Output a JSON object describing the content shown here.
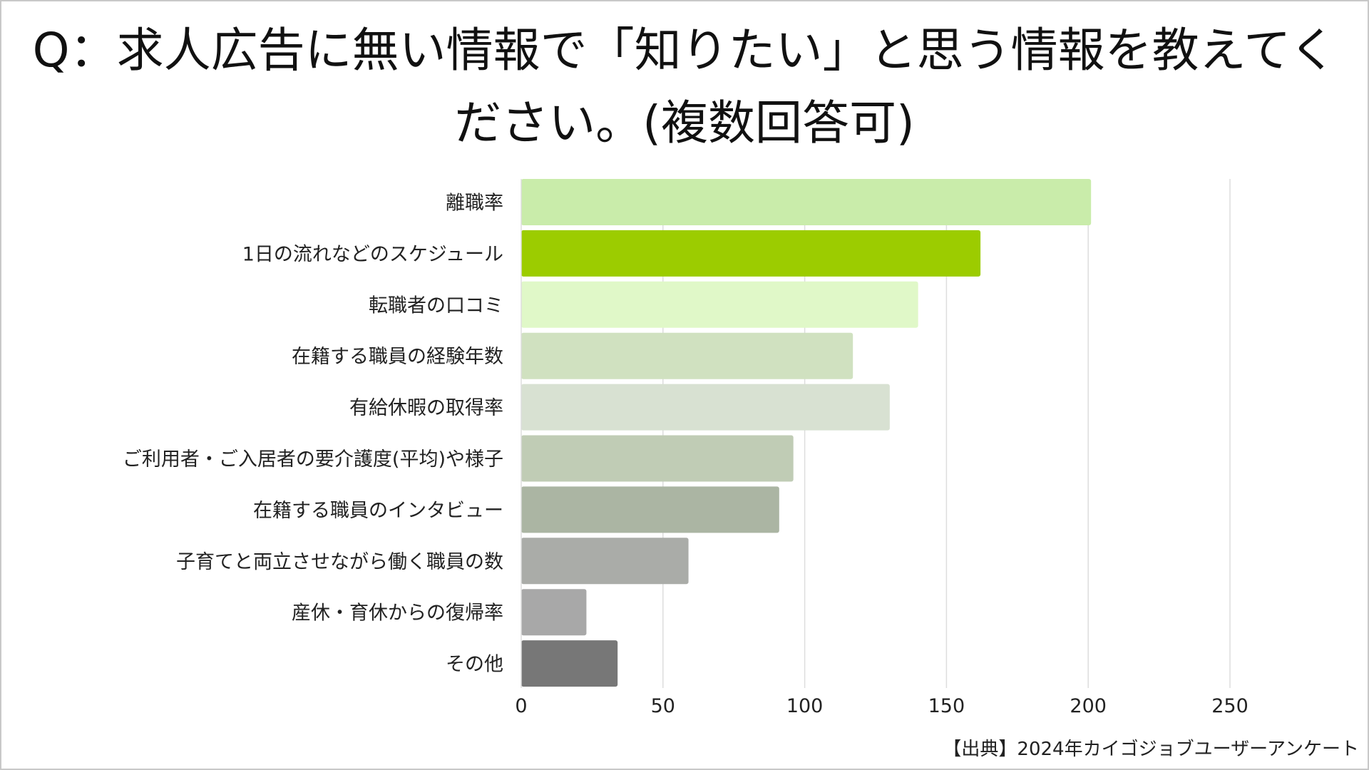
{
  "chart_data": {
    "type": "bar",
    "orientation": "horizontal",
    "title": "Q：求人広告に無い情報で「知りたい」と思う情報を教えてください。(複数回答可)",
    "categories": [
      "離職率",
      "1日の流れなどのスケジュール",
      "転職者の口コミ",
      "在籍する職員の経験年数",
      "有給休暇の取得率",
      "ご利用者・ご入居者の要介護度(平均)や様子",
      "在籍する職員のインタビュー",
      "子育てと両立させながら働く職員の数",
      "産休・育休からの復帰率",
      "その他"
    ],
    "values": [
      201,
      162,
      140,
      117,
      130,
      96,
      91,
      59,
      23,
      34
    ],
    "colors": [
      "#c9ecaa",
      "#9ccc00",
      "#e0f8c8",
      "#d0e1c0",
      "#d8e1d2",
      "#c0ccb5",
      "#abb5a3",
      "#aaaca8",
      "#a8a8a8",
      "#777777"
    ],
    "xlim": [
      0,
      250
    ],
    "xticks": [
      "0",
      "50",
      "100",
      "150",
      "200",
      "250"
    ],
    "grid": true,
    "source": "【出典】2024年カイゴジョブユーザーアンケート"
  }
}
